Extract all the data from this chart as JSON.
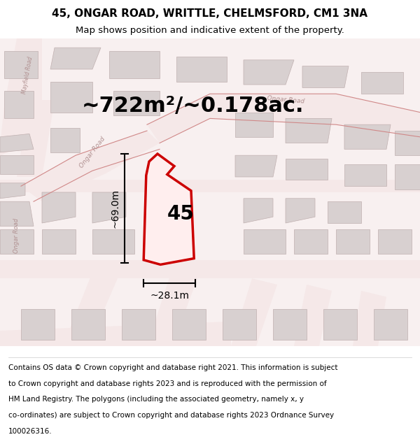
{
  "title_line1": "45, ONGAR ROAD, WRITTLE, CHELMSFORD, CM1 3NA",
  "title_line2": "Map shows position and indicative extent of the property.",
  "area_text": "~722m²/~0.178ac.",
  "label_45": "45",
  "dim_height": "~69.0m",
  "dim_width": "~28.1m",
  "footer_lines": [
    "Contains OS data © Crown copyright and database right 2021. This information is subject",
    "to Crown copyright and database rights 2023 and is reproduced with the permission of",
    "HM Land Registry. The polygons (including the associated geometry, namely x, y",
    "co-ordinates) are subject to Crown copyright and database rights 2023 Ordnance Survey",
    "100026316."
  ],
  "map_bg": "#ffffff",
  "road_fill": "#f5e8e8",
  "road_line_color": "#d08888",
  "building_face": "#d8d0d0",
  "building_edge": "#c0b0b0",
  "plot_fill": "#ffeeee",
  "plot_edge": "#cc0000",
  "road_label_color": "#b09090",
  "title_fontsize": 11,
  "subtitle_fontsize": 9.5,
  "area_fontsize": 22,
  "label_fontsize": 20,
  "dim_fontsize": 10,
  "footer_fontsize": 7.5
}
